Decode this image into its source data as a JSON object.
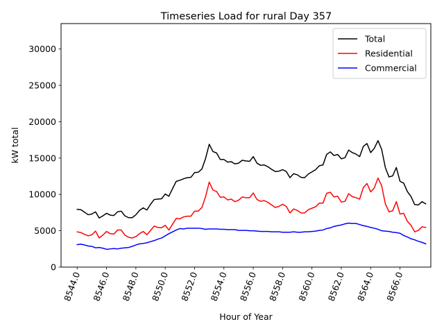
{
  "chart_data": {
    "type": "line",
    "title": "Timeseries Load for rural   Day 357",
    "xlabel": "Hour of Year",
    "ylabel": "kW total",
    "xlim": [
      8542.9,
      8568.1
    ],
    "ylim": [
      0,
      33500
    ],
    "xticks": [
      8544,
      8546,
      8548,
      8550,
      8552,
      8554,
      8556,
      8558,
      8560,
      8562,
      8564,
      8566
    ],
    "xtick_labels": [
      "8544.0",
      "8546.0",
      "8548.0",
      "8550.0",
      "8552.0",
      "8554.0",
      "8556.0",
      "8558.0",
      "8560.0",
      "8562.0",
      "8564.0",
      "8566.0"
    ],
    "yticks": [
      0,
      5000,
      10000,
      15000,
      20000,
      25000,
      30000
    ],
    "ytick_labels": [
      "0",
      "5000",
      "10000",
      "15000",
      "20000",
      "25000",
      "30000"
    ],
    "grid": false,
    "legend_position": "top-right",
    "x": [
      8544.0,
      8544.25,
      8544.5,
      8544.75,
      8545.0,
      8545.25,
      8545.5,
      8545.75,
      8546.0,
      8546.25,
      8546.5,
      8546.75,
      8547.0,
      8547.25,
      8547.5,
      8547.75,
      8548.0,
      8548.25,
      8548.5,
      8548.75,
      8549.0,
      8549.25,
      8549.5,
      8549.75,
      8550.0,
      8550.25,
      8550.5,
      8550.75,
      8551.0,
      8551.25,
      8551.5,
      8551.75,
      8552.0,
      8552.25,
      8552.5,
      8552.75,
      8553.0,
      8553.25,
      8553.5,
      8553.75,
      8554.0,
      8554.25,
      8554.5,
      8554.75,
      8555.0,
      8555.25,
      8555.5,
      8555.75,
      8556.0,
      8556.25,
      8556.5,
      8556.75,
      8557.0,
      8557.25,
      8557.5,
      8557.75,
      8558.0,
      8558.25,
      8558.5,
      8558.75,
      8559.0,
      8559.25,
      8559.5,
      8559.75,
      8560.0,
      8560.25,
      8560.5,
      8560.75,
      8561.0,
      8561.25,
      8561.5,
      8561.75,
      8562.0,
      8562.25,
      8562.5,
      8562.75,
      8563.0,
      8563.25,
      8563.5,
      8563.75,
      8564.0,
      8564.25,
      8564.5,
      8564.75,
      8565.0,
      8565.25,
      8565.5,
      8565.75,
      8566.0,
      8566.25,
      8566.5,
      8566.75,
      8567.0,
      8567.25,
      8567.5,
      8567.75
    ],
    "series": [
      {
        "name": "Total",
        "color": "#000000",
        "values": [
          7950,
          7900,
          7550,
          7200,
          7300,
          7600,
          6750,
          7050,
          7400,
          7150,
          7100,
          7600,
          7700,
          7050,
          6800,
          6800,
          7200,
          7800,
          8150,
          7850,
          8650,
          9300,
          9350,
          9400,
          10050,
          9750,
          10800,
          11800,
          11950,
          12150,
          12300,
          12350,
          13000,
          13050,
          13500,
          14950,
          16900,
          15900,
          15700,
          14800,
          14800,
          14450,
          14500,
          14200,
          14300,
          14700,
          14600,
          14550,
          15200,
          14300,
          14000,
          14050,
          13800,
          13450,
          13150,
          13200,
          13400,
          13150,
          12300,
          12850,
          12700,
          12350,
          12300,
          12800,
          13100,
          13400,
          13950,
          14050,
          15500,
          15850,
          15350,
          15500,
          14900,
          15050,
          16100,
          15750,
          15550,
          15200,
          16600,
          17000,
          15750,
          16350,
          17400,
          16200,
          13700,
          12400,
          12550,
          13700,
          11800,
          11550,
          10400,
          9700,
          8600,
          8550,
          9000,
          8700
        ]
      },
      {
        "name": "Residential",
        "color": "#ff0000",
        "values": [
          4850,
          4750,
          4500,
          4300,
          4450,
          4950,
          4000,
          4400,
          4900,
          4600,
          4550,
          5100,
          5100,
          4400,
          4100,
          4000,
          4200,
          4600,
          4900,
          4450,
          5050,
          5650,
          5450,
          5400,
          5750,
          5100,
          5900,
          6700,
          6650,
          6900,
          7000,
          7000,
          7700,
          7700,
          8200,
          9700,
          11700,
          10600,
          10400,
          9600,
          9650,
          9250,
          9350,
          9000,
          9200,
          9650,
          9550,
          9550,
          10200,
          9300,
          9050,
          9150,
          8900,
          8550,
          8200,
          8350,
          8650,
          8350,
          7450,
          8000,
          7800,
          7450,
          7450,
          7900,
          8100,
          8300,
          8800,
          8800,
          10150,
          10300,
          9650,
          9750,
          8950,
          9050,
          10100,
          9700,
          9550,
          9350,
          10950,
          11500,
          10350,
          10900,
          12250,
          11200,
          8700,
          7600,
          7750,
          9000,
          7300,
          7400,
          6300,
          5750,
          4850,
          5050,
          5550,
          5450
        ]
      },
      {
        "name": "Commercial",
        "color": "#0000ff",
        "values": [
          3100,
          3150,
          3050,
          2900,
          2850,
          2650,
          2700,
          2600,
          2450,
          2500,
          2550,
          2500,
          2600,
          2650,
          2700,
          2850,
          3050,
          3200,
          3250,
          3350,
          3500,
          3650,
          3850,
          4000,
          4300,
          4600,
          4850,
          5100,
          5300,
          5250,
          5350,
          5350,
          5350,
          5350,
          5300,
          5200,
          5250,
          5250,
          5250,
          5200,
          5200,
          5150,
          5150,
          5150,
          5050,
          5050,
          5050,
          5000,
          5000,
          4950,
          4900,
          4900,
          4900,
          4850,
          4850,
          4850,
          4800,
          4800,
          4800,
          4850,
          4800,
          4800,
          4850,
          4850,
          4900,
          4950,
          5050,
          5100,
          5300,
          5400,
          5600,
          5700,
          5800,
          5950,
          6050,
          6000,
          6000,
          5850,
          5700,
          5600,
          5450,
          5350,
          5200,
          5000,
          4950,
          4900,
          4800,
          4750,
          4650,
          4350,
          4150,
          3900,
          3750,
          3550,
          3400,
          3200
        ]
      }
    ]
  }
}
